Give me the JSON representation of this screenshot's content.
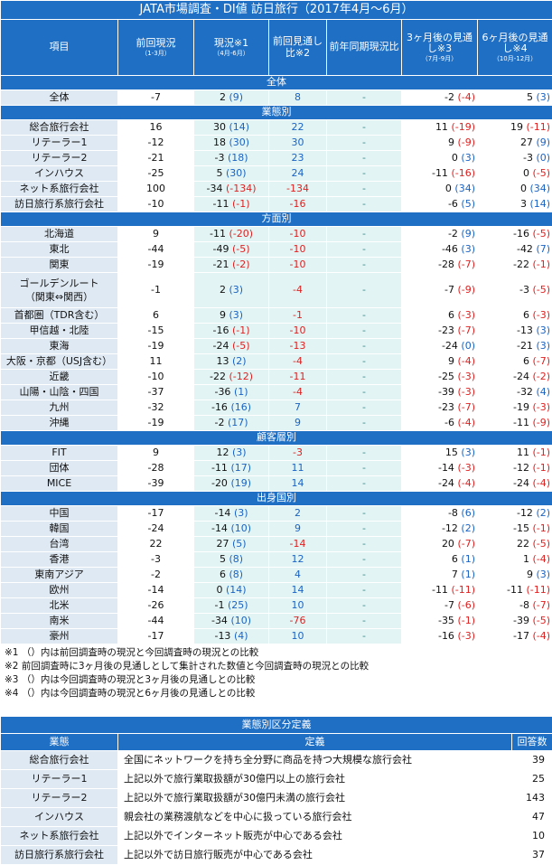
{
  "title": "JATA市場調査・DI値 訪日旅行（2017年4月～6月）",
  "headers": {
    "item": "項目",
    "prev_main": "前回現況",
    "prev_sub": "（1-3月）",
    "cur_main": "現況※1",
    "cur_sub": "（4月-6月）",
    "prevest_main": "前回見通し比※2",
    "yoy_main": "前年同期現況比",
    "m3_main": "3ヶ月後の見通し※3",
    "m3_sub": "（7月-9月）",
    "m6_main": "6ヶ月後の見通し※4",
    "m6_sub": "（10月-12月）"
  },
  "sections": [
    {
      "title": "全体",
      "rows": [
        {
          "label": "全体",
          "prev": "-7",
          "cur": "2",
          "curd": "(9)",
          "pe": "8",
          "yoy": "-",
          "m3": "-2",
          "m3d": "(-4)",
          "m6": "5",
          "m6d": "(3)"
        }
      ]
    },
    {
      "title": "業態別",
      "rows": [
        {
          "label": "総合旅行会社",
          "prev": "16",
          "cur": "30",
          "curd": "(14)",
          "pe": "22",
          "yoy": "-",
          "m3": "11",
          "m3d": "(-19)",
          "m6": "19",
          "m6d": "(-11)"
        },
        {
          "label": "リテーラー1",
          "prev": "-12",
          "cur": "18",
          "curd": "(30)",
          "pe": "30",
          "yoy": "-",
          "m3": "9",
          "m3d": "(-9)",
          "m6": "27",
          "m6d": "(9)"
        },
        {
          "label": "リテーラー2",
          "prev": "-21",
          "cur": "-3",
          "curd": "(18)",
          "pe": "23",
          "yoy": "-",
          "m3": "0",
          "m3d": "(3)",
          "m6": "-3",
          "m6d": "(0)"
        },
        {
          "label": "インハウス",
          "prev": "-25",
          "cur": "5",
          "curd": "(30)",
          "pe": "24",
          "yoy": "-",
          "m3": "-11",
          "m3d": "(-16)",
          "m6": "0",
          "m6d": "(-5)"
        },
        {
          "label": "ネット系旅行会社",
          "prev": "100",
          "cur": "-34",
          "curd": "(-134)",
          "pe": "-134",
          "yoy": "-",
          "m3": "0",
          "m3d": "(34)",
          "m6": "0",
          "m6d": "(34)"
        },
        {
          "label": "訪日旅行系旅行会社",
          "prev": "-10",
          "cur": "-11",
          "curd": "(-1)",
          "pe": "-16",
          "yoy": "-",
          "m3": "-6",
          "m3d": "(5)",
          "m6": "3",
          "m6d": "(14)"
        }
      ]
    },
    {
      "title": "方面別",
      "rows": [
        {
          "label": "北海道",
          "prev": "9",
          "cur": "-11",
          "curd": "(-20)",
          "pe": "-10",
          "yoy": "-",
          "m3": "-2",
          "m3d": "(9)",
          "m6": "-16",
          "m6d": "(-5)"
        },
        {
          "label": "東北",
          "prev": "-44",
          "cur": "-49",
          "curd": "(-5)",
          "pe": "-10",
          "yoy": "-",
          "m3": "-46",
          "m3d": "(3)",
          "m6": "-42",
          "m6d": "(7)"
        },
        {
          "label": "関東",
          "prev": "-19",
          "cur": "-21",
          "curd": "(-2)",
          "pe": "-10",
          "yoy": "-",
          "m3": "-28",
          "m3d": "(-7)",
          "m6": "-22",
          "m6d": "(-1)"
        },
        {
          "label": "ゴールデンルート",
          "label2": "（関東⇔関西）",
          "prev": "-1",
          "cur": "2",
          "curd": "(3)",
          "pe": "-4",
          "yoy": "-",
          "m3": "-7",
          "m3d": "(-9)",
          "m6": "-3",
          "m6d": "(-5)"
        },
        {
          "label": "首都圏（TDR含む）",
          "prev": "6",
          "cur": "9",
          "curd": "(3)",
          "pe": "-1",
          "yoy": "-",
          "m3": "6",
          "m3d": "(-3)",
          "m6": "6",
          "m6d": "(-3)"
        },
        {
          "label": "甲信越・北陸",
          "prev": "-15",
          "cur": "-16",
          "curd": "(-1)",
          "pe": "-10",
          "yoy": "-",
          "m3": "-23",
          "m3d": "(-7)",
          "m6": "-13",
          "m6d": "(3)"
        },
        {
          "label": "東海",
          "prev": "-19",
          "cur": "-24",
          "curd": "(-5)",
          "pe": "-13",
          "yoy": "-",
          "m3": "-24",
          "m3d": "(0)",
          "m6": "-21",
          "m6d": "(3)"
        },
        {
          "label": "大阪・京都（USJ含む）",
          "prev": "11",
          "cur": "13",
          "curd": "(2)",
          "pe": "-4",
          "yoy": "-",
          "m3": "9",
          "m3d": "(-4)",
          "m6": "6",
          "m6d": "(-7)"
        },
        {
          "label": "近畿",
          "prev": "-10",
          "cur": "-22",
          "curd": "(-12)",
          "pe": "-11",
          "yoy": "-",
          "m3": "-25",
          "m3d": "(-3)",
          "m6": "-24",
          "m6d": "(-2)"
        },
        {
          "label": "山陽・山陰・四国",
          "prev": "-37",
          "cur": "-36",
          "curd": "(1)",
          "pe": "-4",
          "yoy": "-",
          "m3": "-39",
          "m3d": "(-3)",
          "m6": "-32",
          "m6d": "(4)"
        },
        {
          "label": "九州",
          "prev": "-32",
          "cur": "-16",
          "curd": "(16)",
          "pe": "7",
          "yoy": "-",
          "m3": "-23",
          "m3d": "(-7)",
          "m6": "-19",
          "m6d": "(-3)"
        },
        {
          "label": "沖縄",
          "prev": "-19",
          "cur": "-2",
          "curd": "(17)",
          "pe": "9",
          "yoy": "-",
          "m3": "-6",
          "m3d": "(-4)",
          "m6": "-11",
          "m6d": "(-9)"
        }
      ]
    },
    {
      "title": "顧客層別",
      "rows": [
        {
          "label": "FIT",
          "prev": "9",
          "cur": "12",
          "curd": "(3)",
          "pe": "-3",
          "yoy": "-",
          "m3": "15",
          "m3d": "(3)",
          "m6": "11",
          "m6d": "(-1)"
        },
        {
          "label": "団体",
          "prev": "-28",
          "cur": "-11",
          "curd": "(17)",
          "pe": "11",
          "yoy": "-",
          "m3": "-14",
          "m3d": "(-3)",
          "m6": "-12",
          "m6d": "(-1)"
        },
        {
          "label": "MICE",
          "prev": "-39",
          "cur": "-20",
          "curd": "(19)",
          "pe": "14",
          "yoy": "-",
          "m3": "-24",
          "m3d": "(-4)",
          "m6": "-24",
          "m6d": "(-4)"
        }
      ]
    },
    {
      "title": "出身国別",
      "rows": [
        {
          "label": "中国",
          "prev": "-17",
          "cur": "-14",
          "curd": "(3)",
          "pe": "2",
          "yoy": "-",
          "m3": "-8",
          "m3d": "(6)",
          "m6": "-12",
          "m6d": "(2)"
        },
        {
          "label": "韓国",
          "prev": "-24",
          "cur": "-14",
          "curd": "(10)",
          "pe": "9",
          "yoy": "-",
          "m3": "-12",
          "m3d": "(2)",
          "m6": "-15",
          "m6d": "(-1)"
        },
        {
          "label": "台湾",
          "prev": "22",
          "cur": "27",
          "curd": "(5)",
          "pe": "-14",
          "yoy": "-",
          "m3": "20",
          "m3d": "(-7)",
          "m6": "22",
          "m6d": "(-5)"
        },
        {
          "label": "香港",
          "prev": "-3",
          "cur": "5",
          "curd": "(8)",
          "pe": "12",
          "yoy": "-",
          "m3": "6",
          "m3d": "(1)",
          "m6": "1",
          "m6d": "(-4)"
        },
        {
          "label": "東南アジア",
          "prev": "-2",
          "cur": "6",
          "curd": "(8)",
          "pe": "4",
          "yoy": "-",
          "m3": "7",
          "m3d": "(1)",
          "m6": "9",
          "m6d": "(3)"
        },
        {
          "label": "欧州",
          "prev": "-14",
          "cur": "0",
          "curd": "(14)",
          "pe": "14",
          "yoy": "-",
          "m3": "-11",
          "m3d": "(-11)",
          "m6": "-11",
          "m6d": "(-11)"
        },
        {
          "label": "北米",
          "prev": "-26",
          "cur": "-1",
          "curd": "(25)",
          "pe": "10",
          "yoy": "-",
          "m3": "-7",
          "m3d": "(-6)",
          "m6": "-8",
          "m6d": "(-7)"
        },
        {
          "label": "南米",
          "prev": "-44",
          "cur": "-34",
          "curd": "(10)",
          "pe": "-76",
          "yoy": "-",
          "m3": "-35",
          "m3d": "(-1)",
          "m6": "-39",
          "m6d": "(-5)"
        },
        {
          "label": "豪州",
          "prev": "-17",
          "cur": "-13",
          "curd": "(4)",
          "pe": "10",
          "yoy": "-",
          "m3": "-16",
          "m3d": "(-3)",
          "m6": "-17",
          "m6d": "(-4)"
        }
      ]
    }
  ],
  "notes": [
    "※1 （）内は前回調査時の現況と今回調査時の現況との比較",
    "※2 前回調査時に3ヶ月後の見通しとして集計された数値と今回調査時の現況との比較",
    "※3 （）内は今回調査時の現況と3ヶ月後の見通しとの比較",
    "※4 （）内は今回調査時の現況と6ヶ月後の見通しとの比較"
  ],
  "definitions": {
    "title": "業態別区分定義",
    "headers": {
      "type": "業態",
      "def": "定義",
      "count": "回答数"
    },
    "rows": [
      {
        "type": "総合旅行会社",
        "def": "全国にネットワークを持ち全分野に商品を持つ大規模な旅行会社",
        "count": "39"
      },
      {
        "type": "リテーラー1",
        "def": "上記以外で旅行業取扱額が30億円以上の旅行会社",
        "count": "25"
      },
      {
        "type": "リテーラー2",
        "def": "上記以外で旅行業取扱額が30億円未満の旅行会社",
        "count": "143"
      },
      {
        "type": "インハウス",
        "def": "親会社の業務渡航などを中心に扱っている旅行会社",
        "count": "47"
      },
      {
        "type": "ネット系旅行会社",
        "def": "上記以外でインターネット販売が中心である会社",
        "count": "10"
      },
      {
        "type": "訪日旅行系旅行会社",
        "def": "上記以外で訪日旅行販売が中心である会社",
        "count": "37"
      }
    ]
  },
  "colors": {
    "header_blue": "#1f6fc5",
    "label_bg": "#dfe9f3",
    "teal_bg": "#e2f5f4",
    "negative": "#e02020",
    "positive": "#1a63c4"
  }
}
